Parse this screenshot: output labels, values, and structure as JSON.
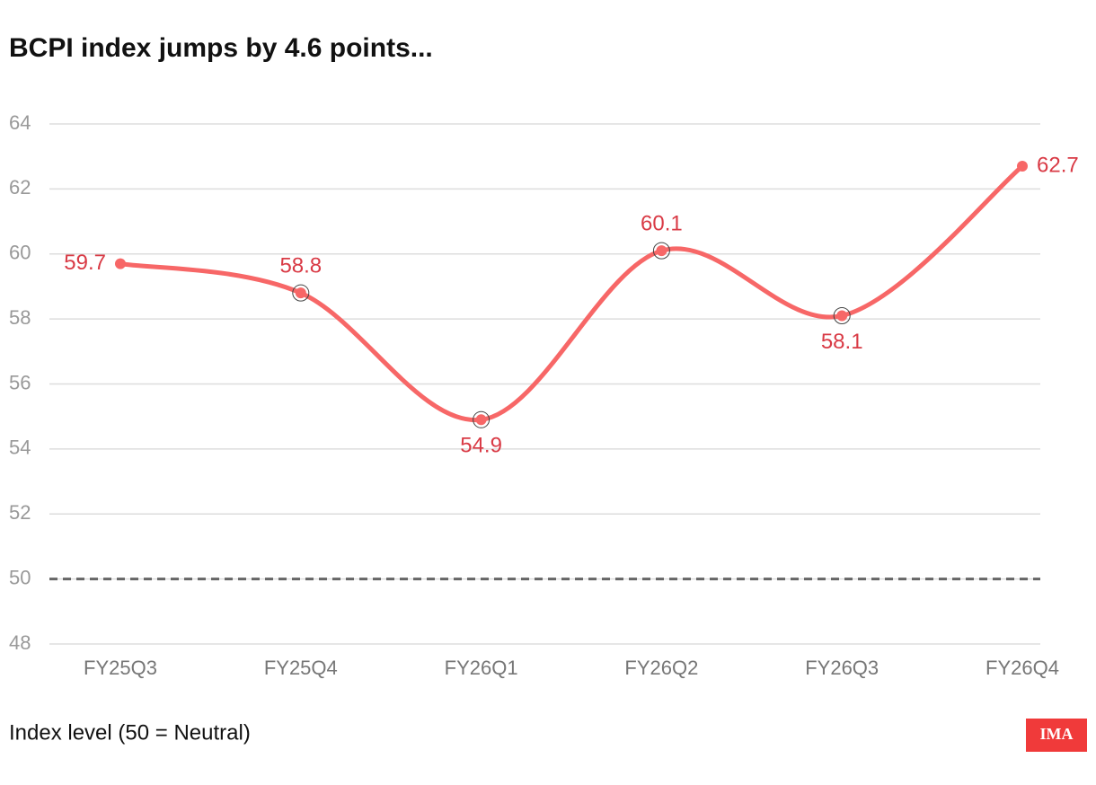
{
  "chart_data": {
    "type": "line",
    "title": "BCPI index jumps by 4.6 points...",
    "categories": [
      "FY25Q3",
      "FY25Q4",
      "FY26Q1",
      "FY26Q2",
      "FY26Q3",
      "FY26Q4"
    ],
    "series": [
      {
        "name": "BCPI index",
        "color": "#f76767",
        "values": [
          59.7,
          58.8,
          54.9,
          60.1,
          58.1,
          62.7
        ]
      }
    ],
    "ylim": [
      48,
      64
    ],
    "yticks": [
      48,
      50,
      52,
      54,
      56,
      58,
      60,
      62,
      64
    ],
    "grid": true,
    "reference_line": 50,
    "note": "Index level (50 = Neutral)",
    "logo": "IMA"
  }
}
